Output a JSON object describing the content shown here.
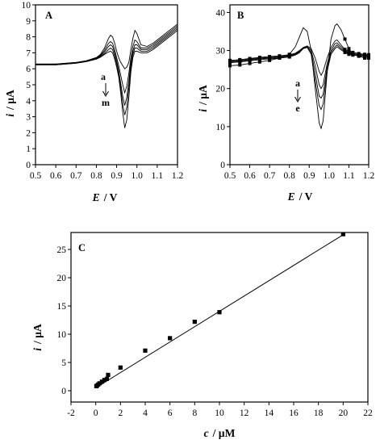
{
  "chart_data": [
    {
      "panel": "A",
      "type": "line",
      "xlabel_var": "E",
      "xlabel_unit": "/ V",
      "ylabel_var": "i",
      "ylabel_unit": "/ µA",
      "xlim": [
        0.5,
        1.2
      ],
      "ylim": [
        0,
        10
      ],
      "xticks": [
        "0.5",
        "0.6",
        "0.7",
        "0.8",
        "0.9",
        "1.0",
        "1.1",
        "1.2"
      ],
      "xtick_values": [
        0.5,
        0.6,
        0.7,
        0.8,
        0.9,
        1.0,
        1.1,
        1.2
      ],
      "yticks": [
        "0",
        "1",
        "2",
        "3",
        "4",
        "5",
        "6",
        "7",
        "8",
        "9",
        "10"
      ],
      "ytick_values": [
        0,
        1,
        2,
        3,
        4,
        5,
        6,
        7,
        8,
        9,
        10
      ],
      "annotation_top": "a",
      "annotation_bottom": "m",
      "x": [
        0.5,
        0.55,
        0.6,
        0.65,
        0.7,
        0.75,
        0.8,
        0.82,
        0.84,
        0.86,
        0.87,
        0.88,
        0.89,
        0.9,
        0.91,
        0.92,
        0.93,
        0.94,
        0.95,
        0.96,
        0.97,
        0.98,
        0.99,
        1.0,
        1.02,
        1.05,
        1.08,
        1.12,
        1.16,
        1.2
      ],
      "series": [
        {
          "values": [
            6.3,
            6.3,
            6.3,
            6.35,
            6.4,
            6.5,
            6.7,
            6.9,
            7.3,
            7.9,
            8.1,
            8.0,
            7.6,
            7.1,
            6.7,
            6.4,
            6.2,
            6.0,
            6.1,
            6.4,
            7.2,
            7.9,
            8.4,
            8.2,
            7.5,
            7.4,
            7.6,
            8.0,
            8.4,
            8.8
          ]
        },
        {
          "values": [
            6.3,
            6.3,
            6.3,
            6.35,
            6.4,
            6.5,
            6.7,
            6.85,
            7.15,
            7.6,
            7.7,
            7.6,
            7.2,
            6.7,
            6.2,
            5.6,
            5.0,
            4.5,
            4.9,
            5.7,
            6.7,
            7.4,
            7.8,
            7.7,
            7.3,
            7.3,
            7.5,
            7.9,
            8.3,
            8.7
          ]
        },
        {
          "values": [
            6.28,
            6.28,
            6.28,
            6.32,
            6.38,
            6.48,
            6.65,
            6.8,
            7.05,
            7.4,
            7.5,
            7.4,
            7.0,
            6.5,
            5.9,
            5.1,
            4.3,
            3.7,
            4.2,
            5.2,
            6.4,
            7.1,
            7.5,
            7.5,
            7.2,
            7.2,
            7.4,
            7.8,
            8.2,
            8.6
          ]
        },
        {
          "values": [
            6.25,
            6.25,
            6.25,
            6.3,
            6.35,
            6.45,
            6.62,
            6.75,
            6.95,
            7.2,
            7.3,
            7.2,
            6.8,
            6.3,
            5.7,
            4.8,
            3.8,
            3.1,
            3.6,
            4.8,
            6.1,
            6.9,
            7.3,
            7.3,
            7.1,
            7.1,
            7.3,
            7.7,
            8.1,
            8.5
          ]
        },
        {
          "values": [
            6.25,
            6.25,
            6.25,
            6.3,
            6.35,
            6.45,
            6.6,
            6.72,
            6.9,
            7.05,
            7.1,
            7.0,
            6.6,
            6.1,
            5.5,
            4.5,
            3.3,
            2.3,
            2.8,
            4.2,
            5.8,
            6.7,
            7.1,
            7.1,
            7.0,
            7.0,
            7.2,
            7.6,
            8.0,
            8.4
          ]
        }
      ]
    },
    {
      "panel": "B",
      "type": "line",
      "xlabel_var": "E",
      "xlabel_unit": "/ V",
      "ylabel_var": "i",
      "ylabel_unit": "/ µA",
      "xlim": [
        0.5,
        1.2
      ],
      "ylim": [
        0,
        42
      ],
      "xticks": [
        "0.5",
        "0.6",
        "0.7",
        "0.8",
        "0.9",
        "1.0",
        "1.1",
        "1.2"
      ],
      "xtick_values": [
        0.5,
        0.6,
        0.7,
        0.8,
        0.9,
        1.0,
        1.1,
        1.2
      ],
      "yticks": [
        "0",
        "10",
        "20",
        "30",
        "40"
      ],
      "ytick_values": [
        0,
        10,
        20,
        30,
        40
      ],
      "annotation_top": "a",
      "annotation_bottom": "e",
      "x": [
        0.5,
        0.55,
        0.6,
        0.65,
        0.7,
        0.75,
        0.8,
        0.83,
        0.85,
        0.87,
        0.89,
        0.91,
        0.93,
        0.95,
        0.96,
        0.97,
        0.99,
        1.01,
        1.03,
        1.04,
        1.06,
        1.08,
        1.1,
        1.12,
        1.15,
        1.18,
        1.2
      ],
      "series": [
        {
          "values": [
            26.0,
            26.2,
            26.6,
            27.0,
            27.4,
            28.0,
            29.0,
            31.0,
            33.5,
            36.0,
            35.0,
            30.0,
            20.0,
            11.0,
            9.5,
            11.5,
            24.0,
            33.0,
            36.5,
            37.0,
            35.5,
            33.0,
            30.5,
            29.0,
            28.5,
            28.0,
            28.0
          ]
        },
        {
          "values": [
            26.8,
            27.0,
            27.3,
            27.6,
            27.8,
            28.0,
            28.3,
            28.8,
            29.4,
            30.5,
            30.8,
            29.0,
            22.0,
            15.5,
            14.5,
            16.0,
            24.5,
            29.0,
            30.5,
            31.0,
            30.2,
            29.5,
            29.0,
            28.8,
            28.6,
            28.4,
            28.3
          ]
        },
        {
          "values": [
            27.0,
            27.2,
            27.5,
            27.8,
            28.0,
            28.2,
            28.5,
            29.0,
            29.6,
            30.5,
            30.9,
            29.5,
            24.0,
            18.0,
            17.5,
            18.5,
            25.5,
            29.5,
            31.0,
            31.5,
            30.5,
            29.8,
            29.3,
            29.0,
            28.8,
            28.6,
            28.5
          ]
        },
        {
          "values": [
            27.2,
            27.4,
            27.7,
            28.0,
            28.2,
            28.4,
            28.7,
            29.1,
            29.8,
            30.6,
            31.0,
            30.0,
            26.0,
            21.0,
            20.0,
            21.0,
            26.5,
            30.0,
            31.8,
            32.0,
            31.0,
            30.0,
            29.5,
            29.2,
            29.0,
            28.8,
            28.7
          ]
        },
        {
          "values": [
            27.4,
            27.6,
            27.9,
            28.2,
            28.4,
            28.6,
            28.9,
            29.3,
            30.0,
            30.8,
            31.2,
            30.5,
            28.0,
            24.5,
            23.5,
            24.5,
            28.0,
            30.8,
            32.5,
            32.8,
            31.5,
            30.3,
            29.8,
            29.5,
            29.2,
            29.0,
            28.9
          ]
        }
      ]
    },
    {
      "panel": "C",
      "type": "scatter",
      "xlabel_var": "c",
      "xlabel_unit": "/ µM",
      "ylabel_var": "i",
      "ylabel_unit": "/ µA",
      "xlim": [
        -2,
        22
      ],
      "ylim": [
        -2,
        28
      ],
      "xticks": [
        "-2",
        "0",
        "2",
        "4",
        "6",
        "8",
        "10",
        "12",
        "14",
        "16",
        "18",
        "20",
        "22"
      ],
      "xtick_values": [
        -2,
        0,
        2,
        4,
        6,
        8,
        10,
        12,
        14,
        16,
        18,
        20,
        22
      ],
      "yticks": [
        "0",
        "5",
        "10",
        "15",
        "20",
        "25"
      ],
      "ytick_values": [
        0,
        5,
        10,
        15,
        20,
        25
      ],
      "points_x": [
        0.05,
        0.1,
        0.2,
        0.3,
        0.5,
        0.7,
        0.9,
        1.0,
        2.0,
        4.0,
        6.0,
        8.0,
        10.0,
        20.0
      ],
      "points_y": [
        0.8,
        0.9,
        1.1,
        1.3,
        1.6,
        1.9,
        2.1,
        2.8,
        4.1,
        7.1,
        9.3,
        12.2,
        13.9,
        27.7
      ],
      "fit_line": {
        "x": [
          0,
          20
        ],
        "y": [
          0.5,
          27.6
        ]
      }
    }
  ]
}
